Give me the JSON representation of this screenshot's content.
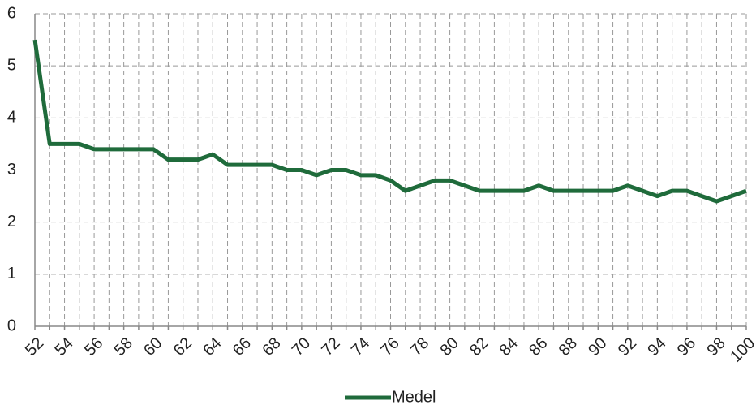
{
  "chart_data": {
    "type": "line",
    "categories": [
      "52",
      null,
      "54",
      null,
      "56",
      null,
      "58",
      null,
      "60",
      null,
      "62",
      null,
      "64",
      null,
      "66",
      null,
      "68",
      null,
      "70",
      null,
      "72",
      null,
      "74",
      null,
      "76",
      null,
      "78",
      null,
      "80",
      null,
      "82",
      null,
      "84",
      null,
      "86",
      null,
      "88",
      null,
      "90",
      null,
      "92",
      null,
      "94",
      null,
      "96",
      null,
      "98",
      null,
      "100"
    ],
    "series": [
      {
        "name": "Medel",
        "color": "#1f6b3b",
        "values": [
          5.5,
          3.5,
          3.5,
          3.5,
          3.4,
          3.4,
          3.4,
          3.4,
          3.4,
          3.2,
          3.2,
          3.2,
          3.3,
          3.1,
          3.1,
          3.1,
          3.1,
          3.0,
          3.0,
          2.9,
          3.0,
          3.0,
          2.9,
          2.9,
          2.8,
          2.6,
          2.7,
          2.8,
          2.8,
          2.7,
          2.6,
          2.6,
          2.6,
          2.6,
          2.7,
          2.6,
          2.6,
          2.6,
          2.6,
          2.6,
          2.7,
          2.6,
          2.5,
          2.6,
          2.6,
          2.5,
          2.4,
          2.5,
          2.6
        ]
      }
    ],
    "ylim": [
      0,
      6
    ],
    "yticks": [
      0,
      1,
      2,
      3,
      4,
      5,
      6
    ],
    "grid": true,
    "legend": "bottom"
  }
}
